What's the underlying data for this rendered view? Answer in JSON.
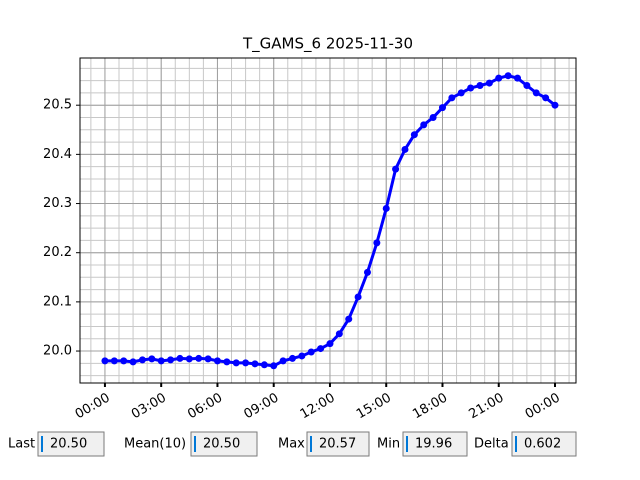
{
  "chart_data": {
    "type": "line",
    "title": "T_GAMS_6 2025-11-30",
    "series": [
      {
        "name": "T_GAMS_6",
        "color": "#0000ff",
        "x": [
          0,
          0.5,
          1,
          1.5,
          2,
          2.5,
          3,
          3.5,
          4,
          4.5,
          5,
          5.5,
          6,
          6.5,
          7,
          7.5,
          8,
          8.5,
          9,
          9.5,
          10,
          10.5,
          11,
          11.5,
          12,
          12.5,
          13,
          13.5,
          14,
          14.5,
          15,
          15.5,
          16,
          16.5,
          17,
          17.5,
          18,
          18.5,
          19,
          19.5,
          20,
          20.5,
          21,
          21.5,
          22,
          22.5,
          23,
          23.5,
          24
        ],
        "values": [
          19.98,
          19.98,
          19.98,
          19.978,
          19.982,
          19.984,
          19.98,
          19.982,
          19.985,
          19.984,
          19.985,
          19.984,
          19.98,
          19.978,
          19.976,
          19.976,
          19.974,
          19.972,
          19.97,
          19.98,
          19.985,
          19.99,
          19.998,
          20.005,
          20.015,
          20.035,
          20.065,
          20.11,
          20.16,
          20.22,
          20.29,
          20.37,
          20.41,
          20.44,
          20.46,
          20.475,
          20.495,
          20.515,
          20.525,
          20.535,
          20.54,
          20.545,
          20.555,
          20.56,
          20.555,
          20.54,
          20.525,
          20.515,
          20.5
        ]
      }
    ],
    "xlim": [
      -1.33,
      25.12
    ],
    "xticks": [
      {
        "value": 0,
        "label": "00:00"
      },
      {
        "value": 3,
        "label": "03:00"
      },
      {
        "value": 6,
        "label": "06:00"
      },
      {
        "value": 9,
        "label": "09:00"
      },
      {
        "value": 12,
        "label": "12:00"
      },
      {
        "value": 15,
        "label": "15:00"
      },
      {
        "value": 18,
        "label": "18:00"
      },
      {
        "value": 21,
        "label": "21:00"
      },
      {
        "value": 24,
        "label": "00:00"
      }
    ],
    "ylim": [
      19.935,
      20.596
    ],
    "yticks": [
      {
        "value": 20,
        "label": "20.0"
      },
      20.1,
      20.2,
      20.3,
      20.4,
      20.5
    ],
    "grid": true
  },
  "stats": [
    {
      "label": "Last",
      "value": "20.50"
    },
    {
      "label": "Mean(10)",
      "value": "20.50"
    },
    {
      "label": "Max",
      "value": "20.57"
    },
    {
      "label": "Min",
      "value": "19.96"
    },
    {
      "label": "Delta",
      "value": "0.602"
    }
  ]
}
